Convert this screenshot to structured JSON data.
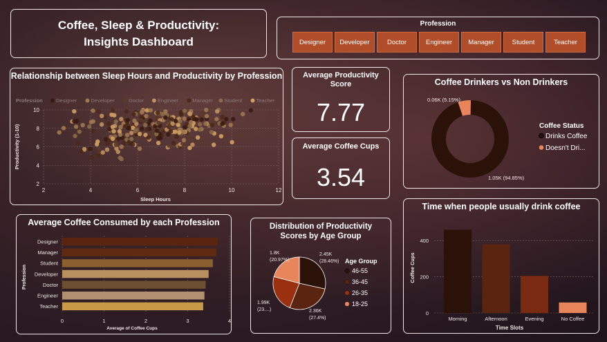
{
  "dashboard": {
    "title": "Coffee, Sleep & Productivity:\nInsights Dashboard"
  },
  "slicer": {
    "header": "Profession",
    "options": [
      "Designer",
      "Developer",
      "Doctor",
      "Engineer",
      "Manager",
      "Student",
      "Teacher"
    ]
  },
  "kpis": {
    "productivity_label": "Average Productivity Score",
    "productivity_value": "7.77",
    "coffee_label": "Average Coffee Cups",
    "coffee_value": "3.54"
  },
  "colors": {
    "accent": "#b04e2a",
    "darkest": "#2a1208",
    "mid_dark": "#5a2510",
    "brown": "#8a3010",
    "orange": "#e8855a"
  },
  "chart_data": [
    {
      "id": "scatter",
      "type": "scatter",
      "title": "Relationship between Sleep Hours and Productivity by Profession",
      "xlabel": "Sleep Hours",
      "ylabel": "Productivity (1-10)",
      "xlim": [
        2,
        12
      ],
      "ylim": [
        2,
        10
      ],
      "xticks": [
        "2",
        "4",
        "6",
        "8",
        "10",
        "12"
      ],
      "yticks": [
        "10",
        "8",
        "6",
        "4",
        "2"
      ],
      "grid": true,
      "legend_title": "Profession",
      "legend": [
        {
          "name": "Designer",
          "color": "#3a1a10"
        },
        {
          "name": "Developer",
          "color": "#a07850"
        },
        {
          "name": "Doctor",
          "color": "#5a3a28"
        },
        {
          "name": "Engineer",
          "color": "#c09060"
        },
        {
          "name": "Manager",
          "color": "#4a2818"
        },
        {
          "name": "Student",
          "color": "#8a6a48"
        },
        {
          "name": "Teacher",
          "color": "#d0a060"
        }
      ]
    },
    {
      "id": "donut",
      "type": "pie",
      "title": "Coffee Drinkers vs Non Drinkers",
      "legend_title": "Coffee Status",
      "slices": [
        {
          "name": "Drinks Coffee",
          "value": 1050,
          "label": "1.05K (94.85%)",
          "color": "#2a1208"
        },
        {
          "name": "Doesn't Dri...",
          "value": 60,
          "label": "0.06K (5.15%)",
          "color": "#e8855a"
        }
      ]
    },
    {
      "id": "hbar",
      "type": "bar",
      "title": "Average Coffee Consumed by each Profession",
      "xlabel": "Average of Coffee Cups",
      "ylabel": "Profession",
      "categories": [
        "Designer",
        "Manager",
        "Student",
        "Developer",
        "Doctor",
        "Engineer",
        "Teacher"
      ],
      "values": [
        3.72,
        3.68,
        3.6,
        3.5,
        3.43,
        3.4,
        3.37
      ],
      "colors": [
        "#5a2510",
        "#5e2a12",
        "#8a6030",
        "#b89060",
        "#6a5030",
        "#b09070",
        "#c89a48"
      ],
      "xlim": [
        0,
        4
      ],
      "xticks": [
        "0",
        "1",
        "2",
        "3",
        "4"
      ]
    },
    {
      "id": "pie",
      "type": "pie",
      "title": "Distribution of Productivity Scores by Age Group",
      "legend_title": "Age Group",
      "slices": [
        {
          "name": "46-55",
          "value": 2450,
          "label": "2.45K\n(28.46%)",
          "color": "#2a1208"
        },
        {
          "name": "36-45",
          "value": 2360,
          "label": "2.36K\n(27.4%)",
          "color": "#5a2510"
        },
        {
          "name": "26-35",
          "value": 1990,
          "label": "1.99K\n(23....)",
          "color": "#9a3010"
        },
        {
          "name": "18-25",
          "value": 1800,
          "label": "1.8K\n(20.97%)",
          "color": "#e8855a"
        }
      ]
    },
    {
      "id": "vbar",
      "type": "bar",
      "title": "Time when people usually drink coffee",
      "xlabel": "Time Slots",
      "ylabel": "Coffee Cups",
      "categories": [
        "Morning",
        "Afternoon",
        "Evening",
        "No Coffee"
      ],
      "values": [
        460,
        380,
        205,
        58
      ],
      "colors": [
        "#2a1208",
        "#5a2510",
        "#7a2a10",
        "#e8855a"
      ],
      "ylim": [
        0,
        500
      ],
      "yticks": [
        "0",
        "200",
        "400"
      ]
    }
  ]
}
